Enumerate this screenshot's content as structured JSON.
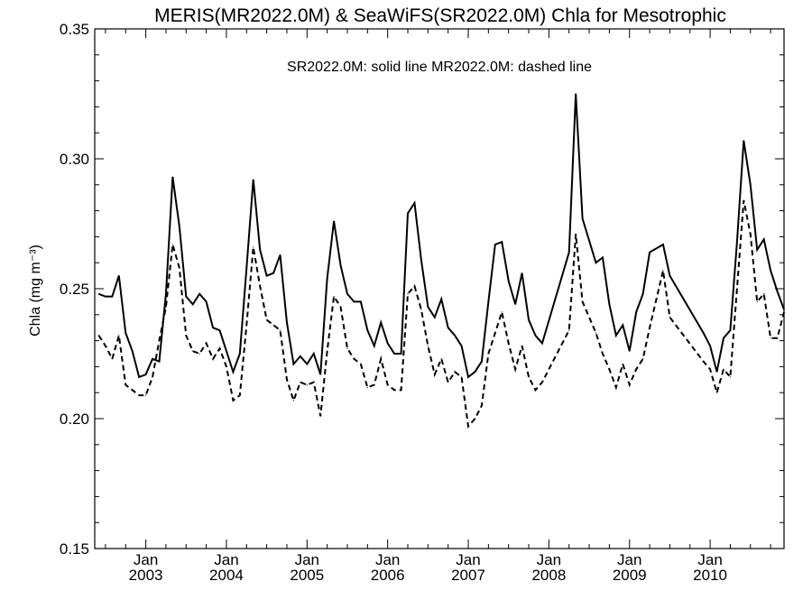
{
  "chart_data": {
    "type": "line",
    "title": "MERIS(MR2022.0M) & SeaWiFS(SR2022.0M)  Chla for Mesotrophic",
    "annotation": "SR2022.0M: solid line   MR2022.0M: dashed line",
    "ylabel": "Chla (mg m⁻³)",
    "xlabel": "",
    "ylim": [
      0.15,
      0.35
    ],
    "xlim": [
      "2002-06",
      "2010-12"
    ],
    "yticks": [
      "0.15",
      "0.20",
      "0.25",
      "0.30",
      "0.35"
    ],
    "xticks": [
      {
        "month": "Jan",
        "year": "2003"
      },
      {
        "month": "Jan",
        "year": "2004"
      },
      {
        "month": "Jan",
        "year": "2005"
      },
      {
        "month": "Jan",
        "year": "2006"
      },
      {
        "month": "Jan",
        "year": "2007"
      },
      {
        "month": "Jan",
        "year": "2008"
      },
      {
        "month": "Jan",
        "year": "2009"
      },
      {
        "month": "Jan",
        "year": "2010"
      }
    ],
    "grid": false,
    "series": [
      {
        "name": "SR2022.0M",
        "style": "solid",
        "color": "#000000",
        "x": [
          "2002-06",
          "2002-07",
          "2002-08",
          "2002-09",
          "2002-10",
          "2002-11",
          "2002-12",
          "2003-01",
          "2003-02",
          "2003-03",
          "2003-04",
          "2003-05",
          "2003-06",
          "2003-07",
          "2003-08",
          "2003-09",
          "2003-10",
          "2003-11",
          "2003-12",
          "2004-01",
          "2004-02",
          "2004-03",
          "2004-04",
          "2004-05",
          "2004-06",
          "2004-07",
          "2004-08",
          "2004-09",
          "2004-10",
          "2004-11",
          "2004-12",
          "2005-01",
          "2005-02",
          "2005-03",
          "2005-04",
          "2005-05",
          "2005-06",
          "2005-07",
          "2005-08",
          "2005-09",
          "2005-10",
          "2005-11",
          "2005-12",
          "2006-01",
          "2006-02",
          "2006-03",
          "2006-04",
          "2006-05",
          "2006-06",
          "2006-07",
          "2006-08",
          "2006-09",
          "2006-10",
          "2006-11",
          "2006-12",
          "2007-01",
          "2007-02",
          "2007-03",
          "2007-04",
          "2007-05",
          "2007-06",
          "2007-07",
          "2007-08",
          "2007-09",
          "2007-10",
          "2007-11",
          "2007-12",
          "2008-04",
          "2008-05",
          "2008-06",
          "2008-08",
          "2008-09",
          "2008-10",
          "2008-11",
          "2008-12",
          "2009-01",
          "2009-02",
          "2009-03",
          "2009-04",
          "2009-06",
          "2009-07",
          "2009-12",
          "2010-01",
          "2010-02",
          "2010-03",
          "2010-04",
          "2010-05",
          "2010-06",
          "2010-07",
          "2010-08",
          "2010-09",
          "2010-10",
          "2010-11",
          "2010-12"
        ],
        "values": [
          0.248,
          0.247,
          0.247,
          0.255,
          0.233,
          0.226,
          0.216,
          0.217,
          0.223,
          0.222,
          0.248,
          0.293,
          0.274,
          0.247,
          0.244,
          0.248,
          0.245,
          0.235,
          0.234,
          0.226,
          0.218,
          0.225,
          0.258,
          0.292,
          0.265,
          0.255,
          0.256,
          0.263,
          0.237,
          0.221,
          0.224,
          0.221,
          0.225,
          0.217,
          0.254,
          0.276,
          0.259,
          0.248,
          0.245,
          0.245,
          0.234,
          0.228,
          0.237,
          0.229,
          0.225,
          0.225,
          0.279,
          0.283,
          0.261,
          0.243,
          0.239,
          0.246,
          0.235,
          0.232,
          0.228,
          0.216,
          0.218,
          0.222,
          0.245,
          0.267,
          0.268,
          0.253,
          0.244,
          0.256,
          0.238,
          0.232,
          0.229,
          0.264,
          0.325,
          0.277,
          0.26,
          0.262,
          0.244,
          0.232,
          0.236,
          0.226,
          0.241,
          0.248,
          0.264,
          0.267,
          0.255,
          0.233,
          0.228,
          0.218,
          0.231,
          0.234,
          0.268,
          0.307,
          0.29,
          0.265,
          0.269,
          0.257,
          0.249,
          0.242
        ]
      },
      {
        "name": "MR2022.0M",
        "style": "dashed",
        "color": "#000000",
        "x": [
          "2002-06",
          "2002-07",
          "2002-08",
          "2002-09",
          "2002-10",
          "2002-11",
          "2002-12",
          "2003-01",
          "2003-02",
          "2003-03",
          "2003-04",
          "2003-05",
          "2003-06",
          "2003-07",
          "2003-08",
          "2003-09",
          "2003-10",
          "2003-11",
          "2003-12",
          "2004-01",
          "2004-02",
          "2004-03",
          "2004-04",
          "2004-05",
          "2004-06",
          "2004-07",
          "2004-08",
          "2004-09",
          "2004-10",
          "2004-11",
          "2004-12",
          "2005-01",
          "2005-02",
          "2005-03",
          "2005-04",
          "2005-05",
          "2005-06",
          "2005-07",
          "2005-08",
          "2005-09",
          "2005-10",
          "2005-11",
          "2005-12",
          "2006-01",
          "2006-02",
          "2006-03",
          "2006-04",
          "2006-05",
          "2006-06",
          "2006-07",
          "2006-08",
          "2006-09",
          "2006-10",
          "2006-11",
          "2006-12",
          "2007-01",
          "2007-02",
          "2007-03",
          "2007-04",
          "2007-05",
          "2007-06",
          "2007-07",
          "2007-08",
          "2007-09",
          "2007-10",
          "2007-11",
          "2007-12",
          "2008-04",
          "2008-05",
          "2008-06",
          "2008-08",
          "2008-09",
          "2008-10",
          "2008-11",
          "2008-12",
          "2009-01",
          "2009-02",
          "2009-03",
          "2009-04",
          "2009-06",
          "2009-07",
          "2009-12",
          "2010-01",
          "2010-02",
          "2010-03",
          "2010-04",
          "2010-05",
          "2010-06",
          "2010-07",
          "2010-08",
          "2010-09",
          "2010-10",
          "2010-11",
          "2010-12"
        ],
        "values": [
          0.232,
          0.228,
          0.223,
          0.232,
          0.213,
          0.211,
          0.209,
          0.209,
          0.216,
          0.23,
          0.243,
          0.267,
          0.258,
          0.232,
          0.226,
          0.225,
          0.229,
          0.223,
          0.227,
          0.22,
          0.207,
          0.209,
          0.236,
          0.266,
          0.251,
          0.238,
          0.236,
          0.234,
          0.215,
          0.207,
          0.214,
          0.213,
          0.214,
          0.201,
          0.226,
          0.247,
          0.243,
          0.227,
          0.223,
          0.221,
          0.212,
          0.213,
          0.223,
          0.213,
          0.211,
          0.211,
          0.248,
          0.251,
          0.242,
          0.228,
          0.217,
          0.223,
          0.214,
          0.218,
          0.216,
          0.197,
          0.2,
          0.205,
          0.225,
          0.233,
          0.241,
          0.229,
          0.219,
          0.228,
          0.216,
          0.211,
          0.214,
          0.234,
          0.271,
          0.245,
          0.233,
          0.225,
          0.219,
          0.212,
          0.221,
          0.213,
          0.219,
          0.223,
          0.235,
          0.257,
          0.239,
          0.222,
          0.219,
          0.21,
          0.219,
          0.216,
          0.25,
          0.284,
          0.271,
          0.245,
          0.248,
          0.231,
          0.231,
          0.241
        ]
      }
    ]
  }
}
